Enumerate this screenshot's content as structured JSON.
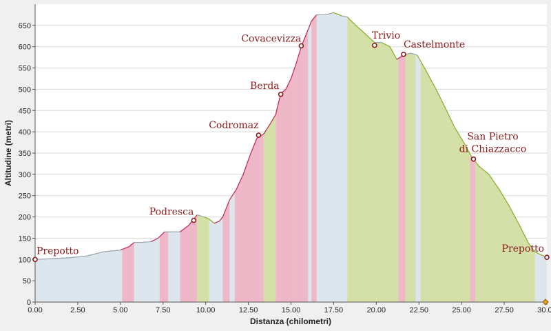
{
  "chart_data": {
    "type": "area",
    "title": "",
    "xlabel": "Distanza (chilometri)",
    "ylabel": "Altitudine (metri)",
    "xlim": [
      0,
      30
    ],
    "ylim": [
      0,
      700
    ],
    "x_ticks": [
      "0.00",
      "2.50",
      "5.00",
      "7.50",
      "10.00",
      "12.50",
      "15.00",
      "17.50",
      "20.00",
      "22.50",
      "25.00",
      "27.50",
      "30.00"
    ],
    "y_ticks": [
      "0",
      "50",
      "100",
      "150",
      "200",
      "250",
      "300",
      "350",
      "400",
      "450",
      "500",
      "550",
      "600",
      "650"
    ],
    "grid": "horizontal",
    "colors": {
      "background": "#ffffff",
      "base_fill": "#dde6ec",
      "climb_fill": "#eeb8c8",
      "descent_fill": "#d4e0a8",
      "flat_fill": "#e2ecf2",
      "climb_line": "#c0305a",
      "descent_line": "#8bb030",
      "flat_line": "#9aaab2",
      "waypoint": "#8b1a1a"
    },
    "profile": [
      {
        "x": 0,
        "y": 100
      },
      {
        "x": 1,
        "y": 102
      },
      {
        "x": 2,
        "y": 104
      },
      {
        "x": 3,
        "y": 108
      },
      {
        "x": 4,
        "y": 118
      },
      {
        "x": 5,
        "y": 122
      },
      {
        "x": 5.5,
        "y": 130
      },
      {
        "x": 5.8,
        "y": 140
      },
      {
        "x": 6.2,
        "y": 140
      },
      {
        "x": 6.8,
        "y": 142
      },
      {
        "x": 7.2,
        "y": 150
      },
      {
        "x": 7.6,
        "y": 165
      },
      {
        "x": 8.0,
        "y": 165
      },
      {
        "x": 8.5,
        "y": 165
      },
      {
        "x": 9.0,
        "y": 180
      },
      {
        "x": 9.3,
        "y": 195
      },
      {
        "x": 9.5,
        "y": 205
      },
      {
        "x": 9.9,
        "y": 200
      },
      {
        "x": 10.2,
        "y": 195
      },
      {
        "x": 10.5,
        "y": 185
      },
      {
        "x": 10.8,
        "y": 190
      },
      {
        "x": 11.0,
        "y": 200
      },
      {
        "x": 11.4,
        "y": 240
      },
      {
        "x": 11.8,
        "y": 265
      },
      {
        "x": 12.2,
        "y": 300
      },
      {
        "x": 12.6,
        "y": 345
      },
      {
        "x": 13.0,
        "y": 385
      },
      {
        "x": 13.4,
        "y": 395
      },
      {
        "x": 13.8,
        "y": 420
      },
      {
        "x": 14.1,
        "y": 440
      },
      {
        "x": 14.4,
        "y": 490
      },
      {
        "x": 14.7,
        "y": 500
      },
      {
        "x": 15.0,
        "y": 525
      },
      {
        "x": 15.3,
        "y": 560
      },
      {
        "x": 15.6,
        "y": 600
      },
      {
        "x": 15.9,
        "y": 630
      },
      {
        "x": 16.2,
        "y": 660
      },
      {
        "x": 16.5,
        "y": 675
      },
      {
        "x": 17.0,
        "y": 675
      },
      {
        "x": 17.5,
        "y": 680
      },
      {
        "x": 18.0,
        "y": 672
      },
      {
        "x": 18.3,
        "y": 670
      },
      {
        "x": 18.8,
        "y": 650
      },
      {
        "x": 19.3,
        "y": 632
      },
      {
        "x": 19.9,
        "y": 610
      },
      {
        "x": 20.3,
        "y": 610
      },
      {
        "x": 20.8,
        "y": 600
      },
      {
        "x": 21.2,
        "y": 570
      },
      {
        "x": 21.6,
        "y": 580
      },
      {
        "x": 22.0,
        "y": 585
      },
      {
        "x": 22.4,
        "y": 580
      },
      {
        "x": 22.9,
        "y": 545
      },
      {
        "x": 23.5,
        "y": 500
      },
      {
        "x": 24.0,
        "y": 460
      },
      {
        "x": 24.6,
        "y": 410
      },
      {
        "x": 25.2,
        "y": 370
      },
      {
        "x": 25.6,
        "y": 340
      },
      {
        "x": 26.0,
        "y": 320
      },
      {
        "x": 26.6,
        "y": 300
      },
      {
        "x": 27.2,
        "y": 265
      },
      {
        "x": 27.8,
        "y": 225
      },
      {
        "x": 28.4,
        "y": 180
      },
      {
        "x": 28.9,
        "y": 140
      },
      {
        "x": 29.3,
        "y": 118
      },
      {
        "x": 29.6,
        "y": 112
      },
      {
        "x": 30.0,
        "y": 105
      }
    ],
    "bands": [
      {
        "x0": 5.1,
        "x1": 5.8,
        "kind": "climb"
      },
      {
        "x0": 7.3,
        "x1": 7.8,
        "kind": "climb"
      },
      {
        "x0": 8.5,
        "x1": 9.5,
        "kind": "climb"
      },
      {
        "x0": 9.5,
        "x1": 10.2,
        "kind": "descent"
      },
      {
        "x0": 11.0,
        "x1": 11.4,
        "kind": "climb"
      },
      {
        "x0": 11.7,
        "x1": 13.4,
        "kind": "climb"
      },
      {
        "x0": 13.4,
        "x1": 14.1,
        "kind": "descent"
      },
      {
        "x0": 14.1,
        "x1": 15.2,
        "kind": "climb"
      },
      {
        "x0": 15.2,
        "x1": 16.0,
        "kind": "climb"
      },
      {
        "x0": 16.2,
        "x1": 16.5,
        "kind": "climb"
      },
      {
        "x0": 18.3,
        "x1": 20.6,
        "kind": "descent"
      },
      {
        "x0": 20.6,
        "x1": 21.3,
        "kind": "descent"
      },
      {
        "x0": 21.3,
        "x1": 21.7,
        "kind": "climb"
      },
      {
        "x0": 21.7,
        "x1": 22.3,
        "kind": "descent"
      },
      {
        "x0": 22.6,
        "x1": 25.5,
        "kind": "descent"
      },
      {
        "x0": 25.5,
        "x1": 25.8,
        "kind": "climb"
      },
      {
        "x0": 25.8,
        "x1": 29.3,
        "kind": "descent"
      }
    ],
    "waypoints": [
      {
        "name": "Prepotto",
        "x": 0.0,
        "y": 100,
        "anchor": "start",
        "dx": 2,
        "dy": -8
      },
      {
        "name": "Podresca",
        "x": 9.3,
        "y": 192,
        "anchor": "end",
        "dx": 0,
        "dy": -8
      },
      {
        "name": "Codromaz",
        "x": 13.1,
        "y": 392,
        "anchor": "end",
        "dx": 0,
        "dy": -10
      },
      {
        "name": "Berda",
        "x": 14.4,
        "y": 488,
        "anchor": "end",
        "dx": -2,
        "dy": -8
      },
      {
        "name": "Covacevizza",
        "x": 15.6,
        "y": 602,
        "anchor": "end",
        "dx": 0,
        "dy": -6
      },
      {
        "name": "Trivio",
        "x": 19.9,
        "y": 603,
        "anchor": "start",
        "dx": -4,
        "dy": -10
      },
      {
        "name": "Castelmonte",
        "x": 21.6,
        "y": 582,
        "anchor": "start",
        "dx": 0,
        "dy": -10
      },
      {
        "name": "San Pietro",
        "x": 25.7,
        "y": 336,
        "anchor": "middle",
        "dx": 28,
        "dy": -28
      },
      {
        "name": "di Chiazzacco",
        "x": 25.7,
        "y": 336,
        "anchor": "middle",
        "dx": 28,
        "dy": -10
      },
      {
        "name": "Prepotto",
        "x": 30.0,
        "y": 105,
        "anchor": "end",
        "dx": -4,
        "dy": -8
      }
    ]
  }
}
